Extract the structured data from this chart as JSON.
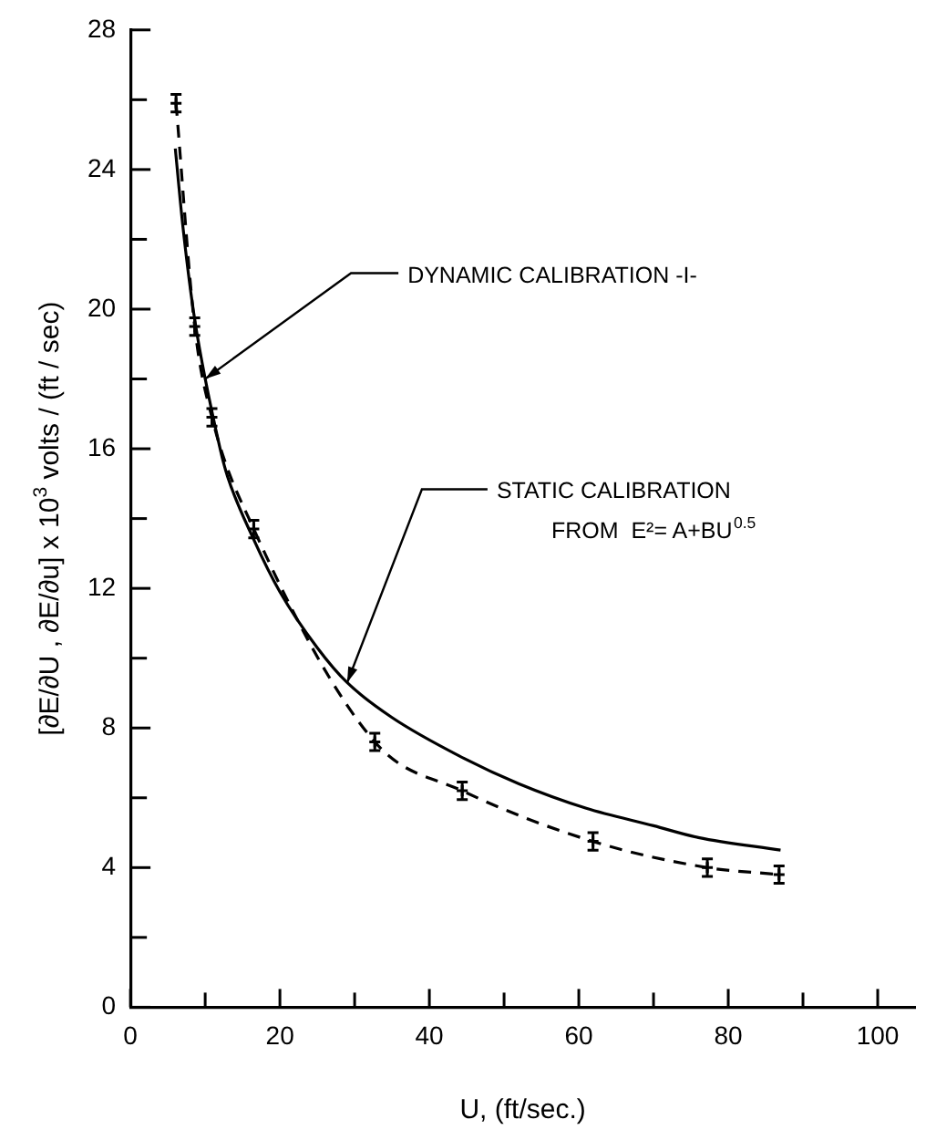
{
  "chart_data": {
    "type": "line",
    "xlabel": "U, (ft/sec.)",
    "ylabel": "[∂E/∂U , ∂E/∂u] x 10$^{3}$ volts / (ft / sec)",
    "xlim": [
      0,
      105
    ],
    "xticks": [
      0,
      {
        "value": 10,
        "label": null
      },
      20,
      {
        "value": 30,
        "label": null
      },
      40,
      {
        "value": 50,
        "label": null
      },
      60,
      {
        "value": 70,
        "label": null
      },
      80,
      {
        "value": 90,
        "label": null
      },
      100
    ],
    "ylim": [
      0,
      28
    ],
    "yticks": [
      0,
      {
        "value": 2,
        "label": null
      },
      4,
      {
        "value": 6,
        "label": null
      },
      8,
      {
        "value": 10,
        "label": null
      },
      12,
      {
        "value": 14,
        "label": null
      },
      16,
      {
        "value": 18,
        "label": null
      },
      20,
      {
        "value": 22,
        "label": null
      },
      24,
      {
        "value": 26,
        "label": null
      },
      28
    ],
    "legend": false,
    "series": [
      {
        "color": "#000000",
        "line_style": "dashed",
        "marker": "cross",
        "x": [
          6.1,
          8.6,
          10.9,
          16.5,
          32.7,
          44.4,
          61.9,
          77.2,
          86.8
        ],
        "values": [
          25.9,
          19.5,
          16.9,
          13.7,
          7.6,
          6.2,
          4.75,
          4.0,
          3.8
        ],
        "errors": [
          0.25,
          0.25,
          0.25,
          0.25,
          0.25,
          0.25,
          0.25,
          0.25,
          0.25
        ]
      },
      {
        "color": "#000000",
        "line_style": "solid",
        "marker": "none",
        "x": [
          6,
          7,
          8.6,
          12,
          13,
          16.5,
          20,
          25,
          29,
          35,
          44,
          52,
          61,
          70,
          76,
          87
        ],
        "values": [
          24.6,
          22.4,
          19.7,
          16.0,
          15.2,
          13.4,
          11.9,
          10.3,
          9.3,
          8.3,
          7.2,
          6.4,
          5.7,
          5.2,
          4.86,
          4.5
        ]
      }
    ],
    "annotations": [
      {
        "text": "DYNAMIC CALIBRATION -I-",
        "x": 10,
        "y": 18
      },
      {
        "text": "STATIC CALIBRATION\nFROM  E²= A+BU$^{0.5}$",
        "x": 29,
        "y": 9.3
      }
    ]
  }
}
